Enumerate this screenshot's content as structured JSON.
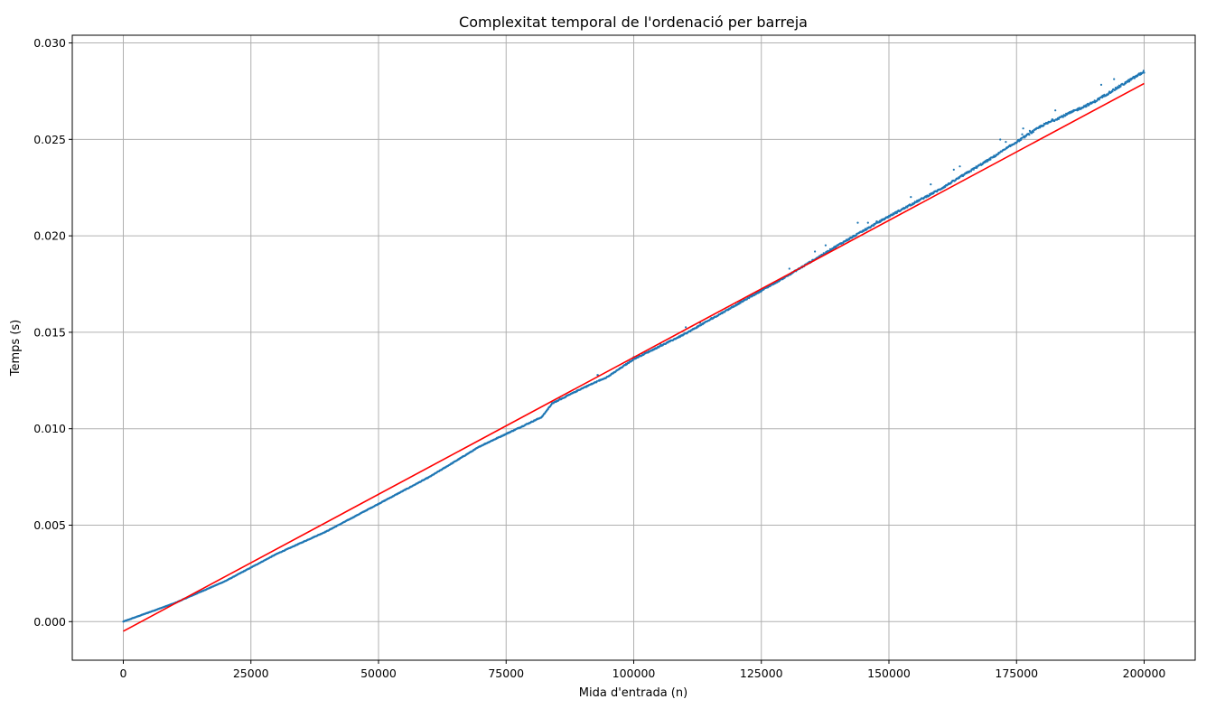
{
  "chart_data": {
    "type": "scatter",
    "title": "Complexitat temporal de l'ordenació per barreja",
    "xlabel": "Mida d'entrada (n)",
    "ylabel": "Temps (s)",
    "xlim": [
      -10000,
      210000
    ],
    "ylim": [
      -0.002,
      0.0304
    ],
    "xticks": [
      0,
      25000,
      50000,
      75000,
      100000,
      125000,
      150000,
      175000,
      200000
    ],
    "yticks": [
      "0.000",
      "0.005",
      "0.010",
      "0.015",
      "0.020",
      "0.025",
      "0.030"
    ],
    "grid": true,
    "colors": {
      "points": "#1f77b4",
      "fit_line": "#ff0000",
      "grid": "#b0b0b0"
    },
    "series": [
      {
        "type": "scatter",
        "curve_points": [
          [
            0,
            0.0
          ],
          [
            10000,
            0.00095
          ],
          [
            20000,
            0.0021
          ],
          [
            30000,
            0.0035
          ],
          [
            40000,
            0.0047
          ],
          [
            50000,
            0.0061
          ],
          [
            60000,
            0.0075
          ],
          [
            70000,
            0.0091
          ],
          [
            82000,
            0.0106
          ],
          [
            84000,
            0.0113
          ],
          [
            90000,
            0.0121
          ],
          [
            95000,
            0.0127
          ],
          [
            100000,
            0.0136
          ],
          [
            110000,
            0.0149
          ],
          [
            120000,
            0.0164
          ],
          [
            130000,
            0.0179
          ],
          [
            140000,
            0.0195
          ],
          [
            150000,
            0.021
          ],
          [
            160000,
            0.0224
          ],
          [
            170000,
            0.024
          ],
          [
            180000,
            0.0257
          ],
          [
            190000,
            0.0269
          ],
          [
            200000,
            0.0285
          ]
        ],
        "values_note_free": true
      },
      {
        "type": "line",
        "x": [
          0,
          200000
        ],
        "y": [
          -0.0005,
          0.0279
        ]
      }
    ]
  }
}
